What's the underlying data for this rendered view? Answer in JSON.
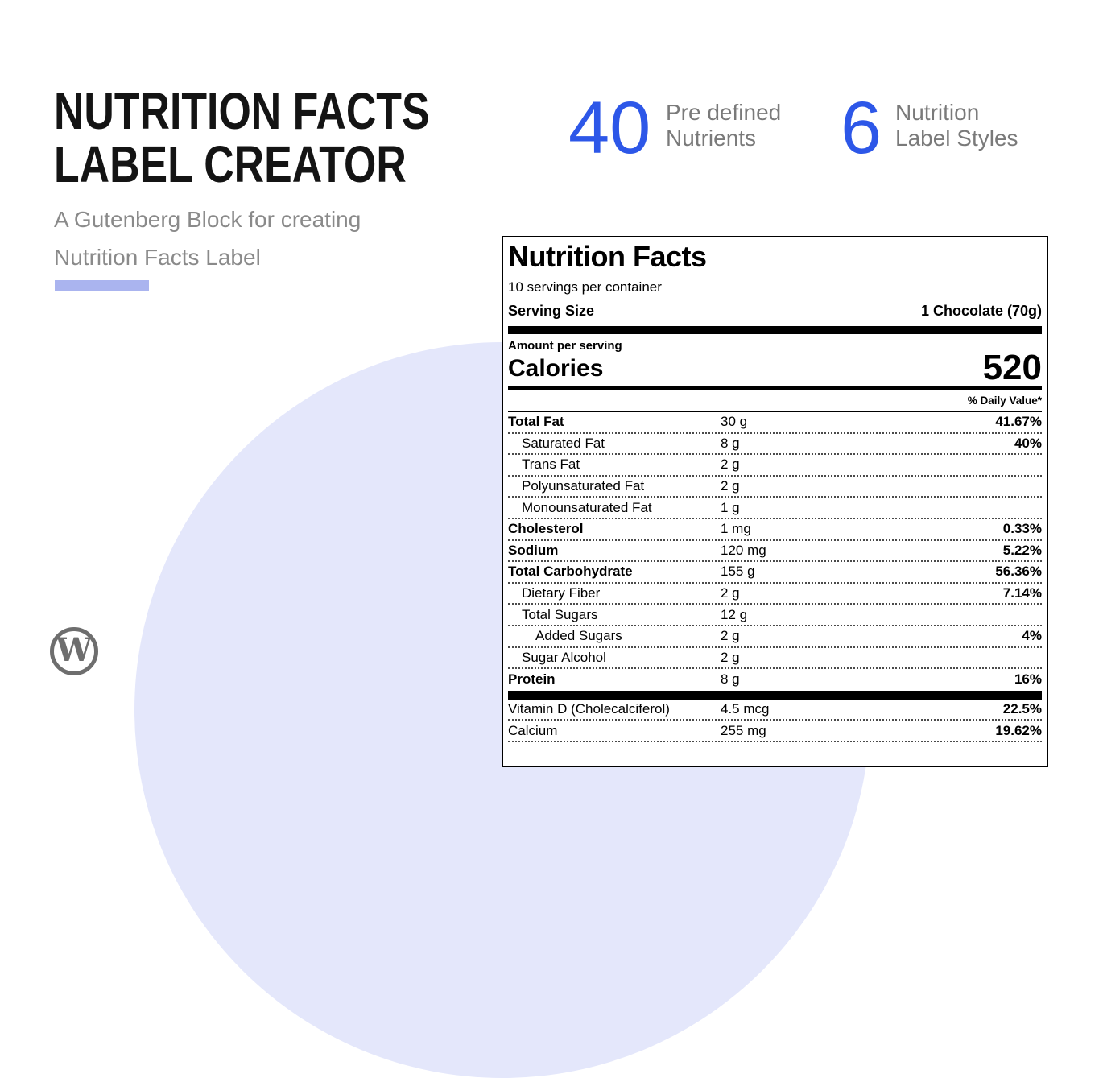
{
  "hero": {
    "title_line1": "NUTRITION FACTS",
    "title_line2": "LABEL CREATOR",
    "subtitle_line1": "A Gutenberg Block for creating",
    "subtitle_line2": "Nutrition Facts Label"
  },
  "stats": [
    {
      "value": "40",
      "label_line1": "Pre defined",
      "label_line2": "Nutrients"
    },
    {
      "value": "6",
      "label_line1": "Nutrition",
      "label_line2": "Label Styles"
    }
  ],
  "wordpress": {
    "glyph": "W"
  },
  "colors": {
    "stat_number_blue": "#2d57e8",
    "accent_bar": "#aab4ef",
    "background_circle": "#e4e7fb",
    "headline_text": "#141414",
    "muted_text": "#7a7a7a",
    "label_text": "#000000"
  },
  "label": {
    "title": "Nutrition Facts",
    "servings_per_container": "10 servings per container",
    "serving_size_label": "Serving Size",
    "serving_size_value": "1 Chocolate (70g)",
    "amount_per_serving": "Amount per serving",
    "calories_label": "Calories",
    "calories_value": "520",
    "daily_value_header": "% Daily Value*",
    "rows": [
      {
        "name": "Total Fat",
        "amount": "30 g",
        "dv": "41.67%"
      },
      {
        "name": "Saturated Fat",
        "amount": "8 g",
        "dv": "40%"
      },
      {
        "name": "Trans Fat",
        "amount": "2 g",
        "dv": ""
      },
      {
        "name": "Polyunsaturated Fat",
        "amount": "2 g",
        "dv": ""
      },
      {
        "name": "Monounsaturated Fat",
        "amount": "1 g",
        "dv": ""
      },
      {
        "name": "Cholesterol",
        "amount": "1 mg",
        "dv": "0.33%"
      },
      {
        "name": "Sodium",
        "amount": "120 mg",
        "dv": "5.22%"
      },
      {
        "name": "Total Carbohydrate",
        "amount": "155 g",
        "dv": "56.36%"
      },
      {
        "name": "Dietary Fiber",
        "amount": "2 g",
        "dv": "7.14%"
      },
      {
        "name": "Total Sugars",
        "amount": "12 g",
        "dv": ""
      },
      {
        "name": "Added Sugars",
        "amount": "2 g",
        "dv": "4%"
      },
      {
        "name": "Sugar Alcohol",
        "amount": "2 g",
        "dv": ""
      },
      {
        "name": "Protein",
        "amount": "8 g",
        "dv": "16%"
      },
      {
        "name": "Vitamin D (Cholecalciferol)",
        "amount": "4.5 mcg",
        "dv": "22.5%"
      },
      {
        "name": "Calcium",
        "amount": "255 mg",
        "dv": "19.62%"
      }
    ]
  }
}
